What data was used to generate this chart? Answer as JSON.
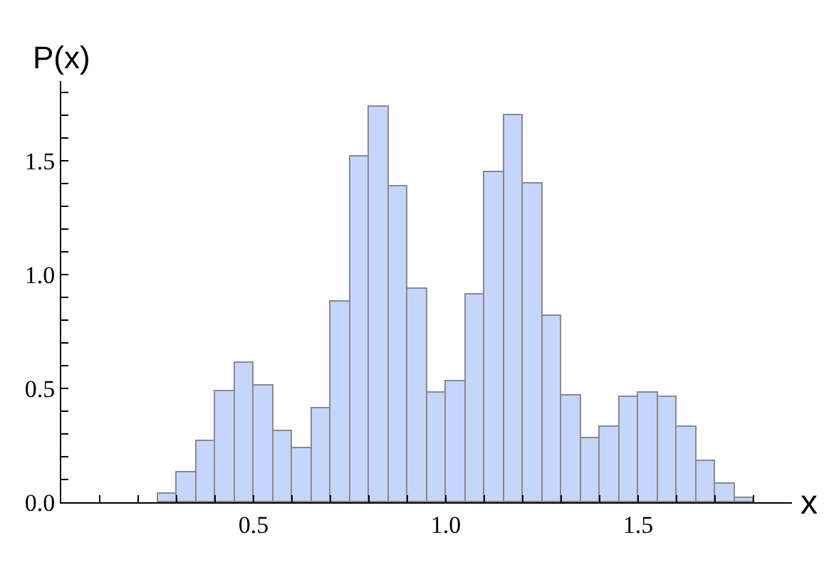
{
  "chart_data": {
    "type": "histogram",
    "xlabel": "x",
    "ylabel": "P(x)",
    "color": "#c5d5fb",
    "bins": [
      0.25,
      0.3,
      0.35,
      0.4,
      0.45,
      0.5,
      0.55,
      0.6,
      0.65,
      0.7,
      0.75,
      0.8,
      0.85,
      0.9,
      0.95,
      1.0,
      1.05,
      1.1,
      1.15,
      1.2,
      1.25,
      1.3,
      1.35,
      1.4,
      1.45,
      1.5,
      1.55,
      1.6,
      1.65,
      1.7,
      1.75,
      1.8
    ],
    "values": [
      0.04,
      0.13,
      0.27,
      0.49,
      0.61,
      0.51,
      0.31,
      0.24,
      0.41,
      0.88,
      1.52,
      1.74,
      1.39,
      0.94,
      0.48,
      0.53,
      0.91,
      1.45,
      1.7,
      1.4,
      0.82,
      0.47,
      0.28,
      0.33,
      0.46,
      0.48,
      0.46,
      0.33,
      0.18,
      0.08,
      0.02
    ],
    "xlim": [
      0,
      1.9
    ],
    "xticks": [
      {
        "value": 0.1,
        "label": null
      },
      {
        "value": 0.2,
        "label": null
      },
      {
        "value": 0.3,
        "label": null
      },
      {
        "value": 0.4,
        "label": null
      },
      {
        "value": 0.5,
        "label": "0.5"
      },
      {
        "value": 0.6,
        "label": null
      },
      {
        "value": 0.7,
        "label": null
      },
      {
        "value": 0.8,
        "label": null
      },
      {
        "value": 0.9,
        "label": null
      },
      {
        "value": 1.0,
        "label": "1.0"
      },
      {
        "value": 1.1,
        "label": null
      },
      {
        "value": 1.2,
        "label": null
      },
      {
        "value": 1.3,
        "label": null
      },
      {
        "value": 1.4,
        "label": null
      },
      {
        "value": 1.5,
        "label": "1.5"
      },
      {
        "value": 1.6,
        "label": null
      },
      {
        "value": 1.7,
        "label": null
      },
      {
        "value": 1.8,
        "label": null
      }
    ],
    "ylim": [
      0,
      1.85
    ],
    "yticks": [
      {
        "value": 0,
        "label": "0.0"
      },
      {
        "value": 0.1,
        "label": null
      },
      {
        "value": 0.2,
        "label": null
      },
      {
        "value": 0.3,
        "label": null
      },
      {
        "value": 0.4,
        "label": null
      },
      {
        "value": 0.5,
        "label": "0.5"
      },
      {
        "value": 0.6,
        "label": null
      },
      {
        "value": 0.7,
        "label": null
      },
      {
        "value": 0.8,
        "label": null
      },
      {
        "value": 0.9,
        "label": null
      },
      {
        "value": 1.0,
        "label": "1.0"
      },
      {
        "value": 1.1,
        "label": null
      },
      {
        "value": 1.2,
        "label": null
      },
      {
        "value": 1.3,
        "label": null
      },
      {
        "value": 1.4,
        "label": null
      },
      {
        "value": 1.5,
        "label": "1.5"
      },
      {
        "value": 1.6,
        "label": null
      },
      {
        "value": 1.7,
        "label": null
      },
      {
        "value": 1.8,
        "label": null
      }
    ],
    "grid": false,
    "legend": false
  }
}
